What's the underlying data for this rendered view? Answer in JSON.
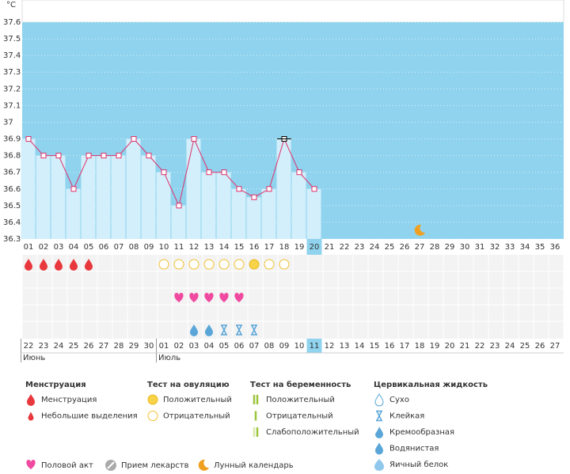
{
  "y_axis_unit": "°C",
  "chart_data": {
    "type": "line",
    "categories": [
      "01",
      "02",
      "03",
      "04",
      "05",
      "06",
      "07",
      "08",
      "09",
      "10",
      "11",
      "12",
      "13",
      "14",
      "15",
      "16",
      "17",
      "18",
      "19",
      "20",
      "21",
      "22",
      "23",
      "24",
      "25",
      "26",
      "27",
      "28",
      "29",
      "30",
      "31",
      "32",
      "33",
      "34",
      "35",
      "36"
    ],
    "values": [
      36.9,
      36.8,
      36.8,
      36.6,
      36.8,
      36.8,
      36.8,
      36.9,
      36.8,
      36.7,
      36.5,
      36.9,
      36.7,
      36.7,
      36.6,
      36.55,
      36.6,
      36.9,
      36.7,
      36.6,
      null,
      null,
      null,
      null,
      null,
      null,
      null,
      null,
      null,
      null,
      null,
      null,
      null,
      null,
      null,
      null
    ],
    "ylim": [
      36.3,
      37.6
    ],
    "yticks": [
      36.3,
      36.4,
      36.5,
      36.6,
      36.7,
      36.8,
      36.9,
      37,
      37.1,
      37.2,
      37.3,
      37.4,
      37.5,
      37.6
    ],
    "color": "#e0306a",
    "area_color": "#8fd3ee",
    "bar_color": "#d2effb"
  },
  "calendar": {
    "dates": [
      {
        "label": "22",
        "weekend": false,
        "month": "Июнь"
      },
      {
        "label": "23",
        "weekend": false
      },
      {
        "label": "24",
        "weekend": false
      },
      {
        "label": "25",
        "weekend": true
      },
      {
        "label": "26",
        "weekend": true
      },
      {
        "label": "27",
        "weekend": false
      },
      {
        "label": "28",
        "weekend": false
      },
      {
        "label": "29",
        "weekend": false
      },
      {
        "label": "30",
        "weekend": false
      },
      {
        "label": "01",
        "weekend": false,
        "month": "Июль"
      },
      {
        "label": "02",
        "weekend": true
      },
      {
        "label": "03",
        "weekend": true
      },
      {
        "label": "04",
        "weekend": false
      },
      {
        "label": "05",
        "weekend": false
      },
      {
        "label": "06",
        "weekend": false
      },
      {
        "label": "07",
        "weekend": false
      },
      {
        "label": "08",
        "weekend": false
      },
      {
        "label": "09",
        "weekend": true
      },
      {
        "label": "10",
        "weekend": true
      },
      {
        "label": "11",
        "weekend": false
      },
      {
        "label": "12",
        "weekend": false
      },
      {
        "label": "13",
        "weekend": false
      },
      {
        "label": "14",
        "weekend": false
      },
      {
        "label": "15",
        "weekend": false
      },
      {
        "label": "16",
        "weekend": true
      },
      {
        "label": "17",
        "weekend": true
      },
      {
        "label": "18",
        "weekend": false
      },
      {
        "label": "19",
        "weekend": false
      },
      {
        "label": "20",
        "weekend": false
      },
      {
        "label": "21",
        "weekend": false
      },
      {
        "label": "22",
        "weekend": false
      },
      {
        "label": "23",
        "weekend": true
      },
      {
        "label": "24",
        "weekend": true
      },
      {
        "label": "25",
        "weekend": false
      },
      {
        "label": "26",
        "weekend": false
      },
      {
        "label": "27",
        "weekend": false
      }
    ],
    "menstruation": [
      "01",
      "02",
      "03",
      "04",
      "05"
    ],
    "ovulation_tests": [
      {
        "day": "10",
        "result": "negative"
      },
      {
        "day": "11",
        "result": "negative"
      },
      {
        "day": "12",
        "result": "negative"
      },
      {
        "day": "13",
        "result": "negative"
      },
      {
        "day": "14",
        "result": "negative"
      },
      {
        "day": "15",
        "result": "negative"
      },
      {
        "day": "16",
        "result": "positive"
      },
      {
        "day": "17",
        "result": "negative"
      },
      {
        "day": "18",
        "result": "negative"
      }
    ],
    "intercourse": [
      "11",
      "12",
      "13",
      "14",
      "15"
    ],
    "cervical_fluid": [
      {
        "day": "12",
        "type": "watery"
      },
      {
        "day": "13",
        "type": "watery"
      },
      {
        "day": "14",
        "type": "sticky"
      },
      {
        "day": "15",
        "type": "sticky"
      },
      {
        "day": "16",
        "type": "sticky"
      }
    ],
    "moon": [
      "27"
    ]
  },
  "legend": {
    "groups": [
      {
        "title": "Менструация",
        "items": [
          "Менструация",
          "Небольшие выделения"
        ]
      },
      {
        "title": "Тест на овуляцию",
        "items": [
          "Положительный",
          "Отрицательный"
        ]
      },
      {
        "title": "Тест на беременность",
        "items": [
          "Положительный",
          "Отрицательный",
          "Слабоположительный"
        ]
      },
      {
        "title": "Цервикальная жидкость",
        "items": [
          "Сухо",
          "Клейкая",
          "Кремообразная",
          "Водянистая",
          "Яичный белок"
        ]
      }
    ],
    "other": [
      "Половой акт",
      "Прием лекарств",
      "Лунный календарь"
    ]
  }
}
